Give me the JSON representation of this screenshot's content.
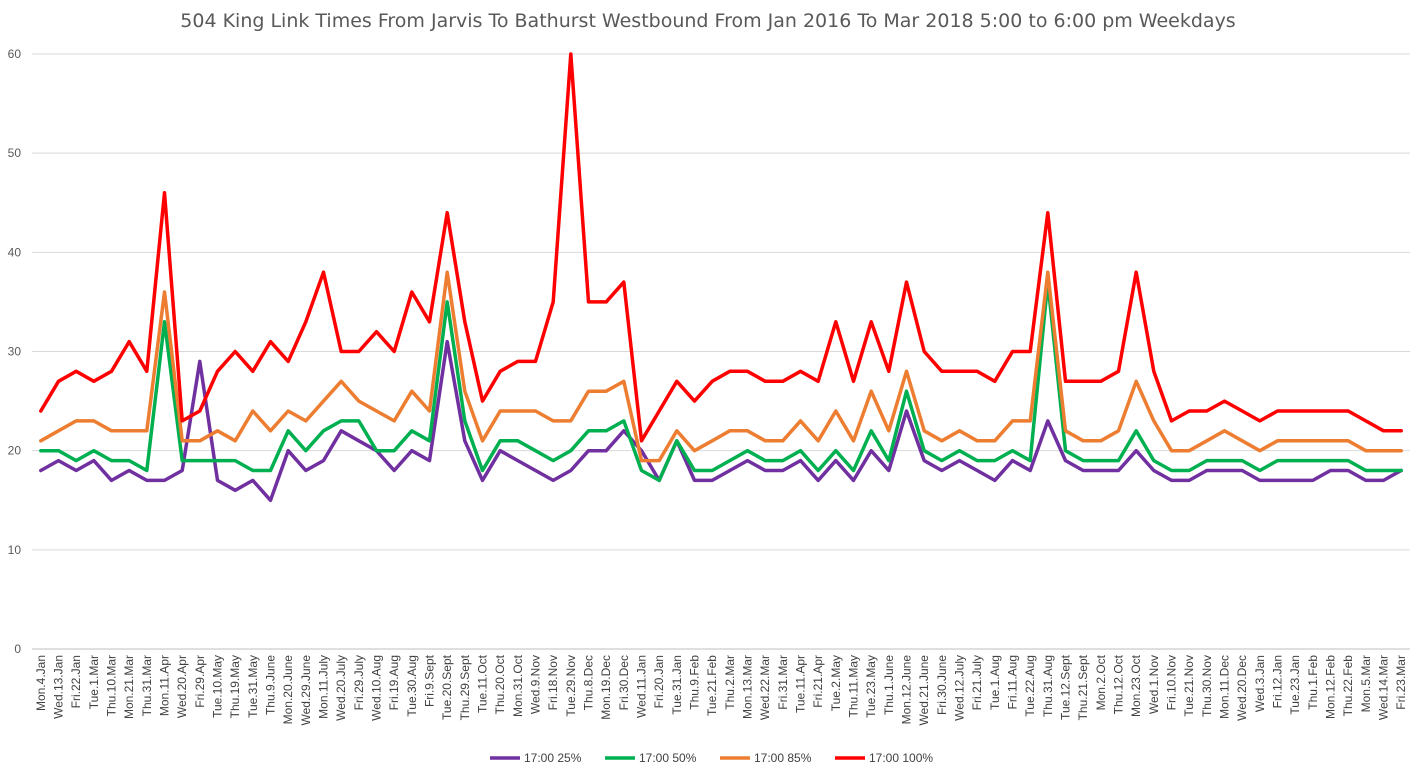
{
  "chart_data": {
    "type": "line",
    "title": "504 King Link Times From Jarvis To Bathurst Westbound From Jan 2016 To Mar 2018 5:00 to 6:00 pm Weekdays",
    "xlabel": "",
    "ylabel": "",
    "ylim": [
      0,
      60
    ],
    "yticks": [
      0,
      10,
      20,
      30,
      40,
      50,
      60
    ],
    "grid": true,
    "legend": "bottom",
    "categories": [
      "Mon.4.Jan",
      "Wed.13.Jan",
      "Fri.22.Jan",
      "Tue.1.Mar",
      "Thu.10.Mar",
      "Mon.21.Mar",
      "Thu.31.Mar",
      "Mon.11.Apr",
      "Wed.20.Apr",
      "Fri.29.Apr",
      "Tue.10.May",
      "Thu.19.May",
      "Tue.31.May",
      "Thu.9.June",
      "Mon.20.June",
      "Wed.29.June",
      "Mon.11.July",
      "Wed.20.July",
      "Fri.29.July",
      "Wed.10.Aug",
      "Fri.19.Aug",
      "Tue.30.Aug",
      "Fri.9.Sept",
      "Tue.20.Sept",
      "Thu.29.Sept",
      "Tue.11.Oct",
      "Thu.20.Oct",
      "Mon.31.Oct",
      "Wed.9.Nov",
      "Fri.18.Nov",
      "Tue.29.Nov",
      "Thu.8.Dec",
      "Mon.19.Dec",
      "Fri.30.Dec",
      "Wed.11.Jan",
      "Fri.20.Jan",
      "Tue.31.Jan",
      "Thu.9.Feb",
      "Tue.21.Feb",
      "Thu.2.Mar",
      "Mon.13.Mar",
      "Wed.22.Mar",
      "Fri.31.Mar",
      "Tue.11.Apr",
      "Fri.21.Apr",
      "Tue.2.May",
      "Thu.11.May",
      "Tue.23.May",
      "Thu.1.June",
      "Mon.12.June",
      "Wed.21.June",
      "Fri.30.June",
      "Wed.12.July",
      "Fri.21.July",
      "Tue.1.Aug",
      "Fri.11.Aug",
      "Tue.22.Aug",
      "Thu.31.Aug",
      "Tue.12.Sept",
      "Thu.21.Sept",
      "Mon.2.Oct",
      "Thu.12.Oct",
      "Mon.23.Oct",
      "Wed.1.Nov",
      "Fri.10.Nov",
      "Tue.21.Nov",
      "Thu.30.Nov",
      "Mon.11.Dec",
      "Wed.20.Dec",
      "Wed.3.Jan",
      "Fri.12.Jan",
      "Tue.23.Jan",
      "Thu.1.Feb",
      "Mon.12.Feb",
      "Thu.22.Feb",
      "Mon.5.Mar",
      "Wed.14.Mar",
      "Fri.23.Mar"
    ],
    "series": [
      {
        "name": "17:00 25%",
        "color": "#7030a0",
        "values": [
          18,
          19,
          18,
          19,
          17,
          18,
          17,
          17,
          18,
          29,
          17,
          16,
          17,
          15,
          20,
          18,
          19,
          22,
          21,
          20,
          18,
          20,
          19,
          31,
          21,
          17,
          20,
          19,
          18,
          17,
          18,
          20,
          20,
          22,
          20,
          17,
          21,
          17,
          17,
          18,
          19,
          18,
          18,
          19,
          17,
          19,
          17,
          20,
          18,
          24,
          19,
          18,
          19,
          18,
          17,
          19,
          18,
          23,
          19,
          18,
          18,
          18,
          20,
          18,
          17,
          17,
          18,
          18,
          18,
          17,
          17,
          17,
          17,
          18,
          18,
          17,
          17,
          18
        ]
      },
      {
        "name": "17:00 50%",
        "color": "#00b050",
        "values": [
          20,
          20,
          19,
          20,
          19,
          19,
          18,
          33,
          19,
          19,
          19,
          19,
          18,
          18,
          22,
          20,
          22,
          23,
          23,
          20,
          20,
          22,
          21,
          35,
          23,
          18,
          21,
          21,
          20,
          19,
          20,
          22,
          22,
          23,
          18,
          17,
          21,
          18,
          18,
          19,
          20,
          19,
          19,
          20,
          18,
          20,
          18,
          22,
          19,
          26,
          20,
          19,
          20,
          19,
          19,
          20,
          19,
          37,
          20,
          19,
          19,
          19,
          22,
          19,
          18,
          18,
          19,
          19,
          19,
          18,
          19,
          19,
          19,
          19,
          19,
          18,
          18,
          18
        ]
      },
      {
        "name": "17:00 85%",
        "color": "#ed7d31",
        "values": [
          21,
          22,
          23,
          23,
          22,
          22,
          22,
          36,
          21,
          21,
          22,
          21,
          24,
          22,
          24,
          23,
          25,
          27,
          25,
          24,
          23,
          26,
          24,
          38,
          26,
          21,
          24,
          24,
          24,
          23,
          23,
          26,
          26,
          27,
          19,
          19,
          22,
          20,
          21,
          22,
          22,
          21,
          21,
          23,
          21,
          24,
          21,
          26,
          22,
          28,
          22,
          21,
          22,
          21,
          21,
          23,
          23,
          38,
          22,
          21,
          21,
          22,
          27,
          23,
          20,
          20,
          21,
          22,
          21,
          20,
          21,
          21,
          21,
          21,
          21,
          20,
          20,
          20
        ]
      },
      {
        "name": "17:00 100%",
        "color": "#ff0000",
        "values": [
          24,
          27,
          28,
          27,
          28,
          31,
          28,
          46,
          23,
          24,
          28,
          30,
          28,
          31,
          29,
          33,
          38,
          30,
          30,
          32,
          30,
          36,
          33,
          44,
          33,
          25,
          28,
          29,
          29,
          35,
          60,
          35,
          35,
          37,
          21,
          24,
          27,
          25,
          27,
          28,
          28,
          27,
          27,
          28,
          27,
          33,
          27,
          33,
          28,
          37,
          30,
          28,
          28,
          28,
          27,
          30,
          30,
          44,
          27,
          27,
          27,
          28,
          38,
          28,
          23,
          24,
          24,
          25,
          24,
          23,
          24,
          24,
          24,
          24,
          24,
          23,
          22,
          22
        ]
      }
    ]
  }
}
